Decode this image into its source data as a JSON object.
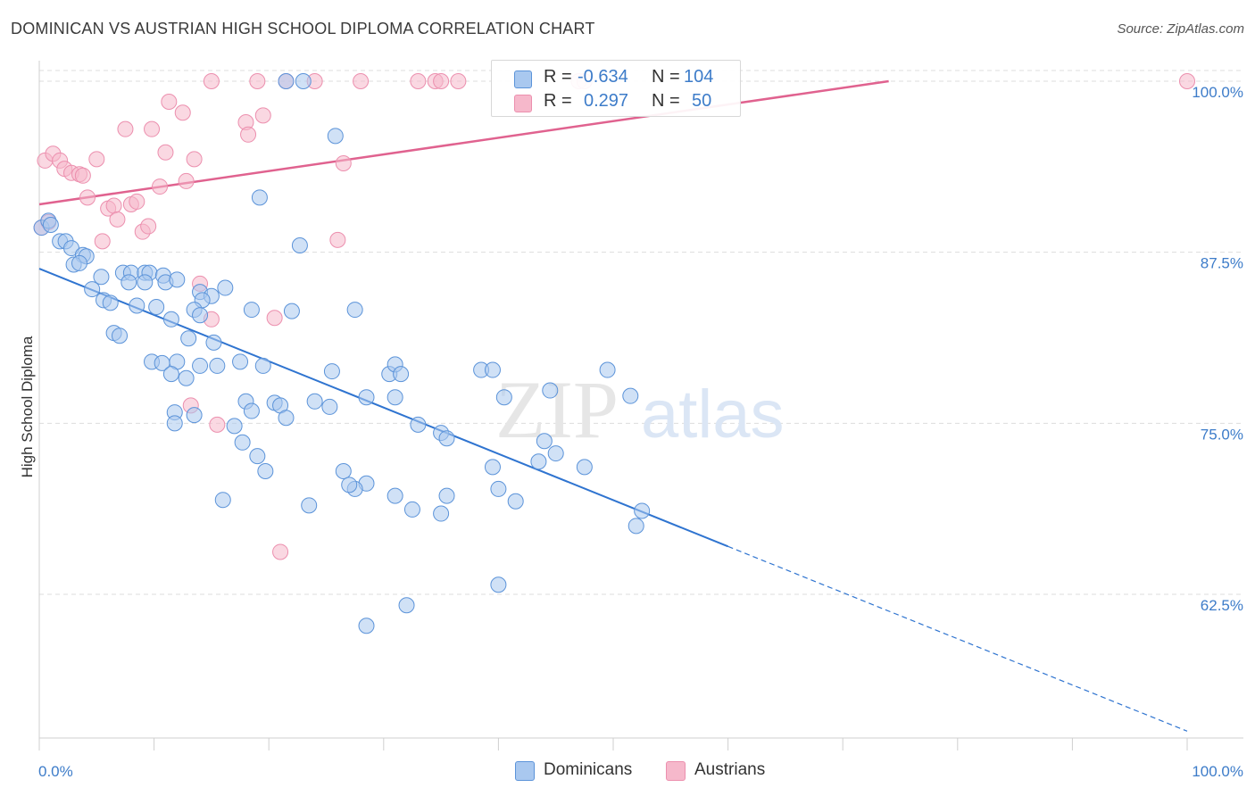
{
  "title": "DOMINICAN VS AUSTRIAN HIGH SCHOOL DIPLOMA CORRELATION CHART",
  "source": "Source: ZipAtlas.com",
  "watermark": {
    "zip": "ZIP",
    "atlas": "atlas"
  },
  "legend": {
    "rows": [
      {
        "r_label": "R =",
        "r_value": "-0.634",
        "n_label": "N =",
        "n_value": "104",
        "color": "#a9c8ef"
      },
      {
        "r_label": "R =",
        "r_value": "0.297",
        "n_label": "N =",
        "n_value": "50",
        "color": "#f6b8cb"
      }
    ]
  },
  "bottom_legend": [
    {
      "label": "Dominicans",
      "color": "#a9c8ef"
    },
    {
      "label": "Austrians",
      "color": "#f6b8cb"
    }
  ],
  "colors": {
    "blue_fill": "#a9c8ef",
    "blue_stroke": "#5b93d9",
    "blue_line": "#2f74d0",
    "pink_fill": "#f6b8cb",
    "pink_stroke": "#ec8fae",
    "pink_line": "#e0628f",
    "tick_text": "#3d7cc9",
    "grid": "#dddddd"
  },
  "chart_data": {
    "type": "scatter",
    "title": "DOMINICAN VS AUSTRIAN HIGH SCHOOL DIPLOMA CORRELATION CHART",
    "ylabel": "High School Diploma",
    "xlabel": "",
    "x_tick_labels": [
      "0.0%",
      "100.0%"
    ],
    "y_tick_labels": [
      "62.5%",
      "75.0%",
      "87.5%",
      "100.0%"
    ],
    "y_ticks": [
      62.5,
      75.0,
      87.5,
      100.0
    ],
    "xlim": [
      0,
      100
    ],
    "ylim": [
      52.0,
      101.5
    ],
    "grid": true,
    "legend_position": "top-center",
    "series": [
      {
        "name": "Dominicans",
        "r": -0.634,
        "n": 104,
        "trend": {
          "x0": 0,
          "y0": 86.3,
          "x1": 60,
          "y1": 66.0,
          "dash_to_x": 100,
          "dash_to_y": 52.5
        },
        "points": [
          [
            0.2,
            89.3
          ],
          [
            0.8,
            89.8
          ],
          [
            1.0,
            89.5
          ],
          [
            1.8,
            88.3
          ],
          [
            2.3,
            88.3
          ],
          [
            2.8,
            87.8
          ],
          [
            3.8,
            87.3
          ],
          [
            4.1,
            87.2
          ],
          [
            3.0,
            86.6
          ],
          [
            3.5,
            86.7
          ],
          [
            7.3,
            86.0
          ],
          [
            8.0,
            86.0
          ],
          [
            9.2,
            86.0
          ],
          [
            9.6,
            86.0
          ],
          [
            10.8,
            85.8
          ],
          [
            5.4,
            85.7
          ],
          [
            11.0,
            85.3
          ],
          [
            12.0,
            85.5
          ],
          [
            9.2,
            85.3
          ],
          [
            7.8,
            85.3
          ],
          [
            4.6,
            84.8
          ],
          [
            14.0,
            84.6
          ],
          [
            16.2,
            84.9
          ],
          [
            15.0,
            84.3
          ],
          [
            5.6,
            84.0
          ],
          [
            14.2,
            84.0
          ],
          [
            6.2,
            83.8
          ],
          [
            8.5,
            83.6
          ],
          [
            10.2,
            83.5
          ],
          [
            18.5,
            83.3
          ],
          [
            13.5,
            83.3
          ],
          [
            14.0,
            82.9
          ],
          [
            11.5,
            82.6
          ],
          [
            22.0,
            83.2
          ],
          [
            27.5,
            83.3
          ],
          [
            6.5,
            81.6
          ],
          [
            7.0,
            81.4
          ],
          [
            13.0,
            81.2
          ],
          [
            15.2,
            80.9
          ],
          [
            9.8,
            79.5
          ],
          [
            10.7,
            79.4
          ],
          [
            12.0,
            79.5
          ],
          [
            14.0,
            79.2
          ],
          [
            17.5,
            79.5
          ],
          [
            19.5,
            79.2
          ],
          [
            11.5,
            78.6
          ],
          [
            15.5,
            79.2
          ],
          [
            12.8,
            78.3
          ],
          [
            25.5,
            78.8
          ],
          [
            30.5,
            78.6
          ],
          [
            31.0,
            79.3
          ],
          [
            31.5,
            78.6
          ],
          [
            38.5,
            78.9
          ],
          [
            39.5,
            78.9
          ],
          [
            49.5,
            78.9
          ],
          [
            28.5,
            76.9
          ],
          [
            31.0,
            76.9
          ],
          [
            40.5,
            76.9
          ],
          [
            44.5,
            77.4
          ],
          [
            51.5,
            77.0
          ],
          [
            18.0,
            76.6
          ],
          [
            20.5,
            76.5
          ],
          [
            21.0,
            76.3
          ],
          [
            24.0,
            76.6
          ],
          [
            18.5,
            75.9
          ],
          [
            21.5,
            75.4
          ],
          [
            25.3,
            76.2
          ],
          [
            11.8,
            75.8
          ],
          [
            13.5,
            75.6
          ],
          [
            11.8,
            75.0
          ],
          [
            17.0,
            74.8
          ],
          [
            33.0,
            74.9
          ],
          [
            35.0,
            74.3
          ],
          [
            44.0,
            73.7
          ],
          [
            45.0,
            72.8
          ],
          [
            43.5,
            72.2
          ],
          [
            17.7,
            73.6
          ],
          [
            19.0,
            72.6
          ],
          [
            35.5,
            73.9
          ],
          [
            39.5,
            71.8
          ],
          [
            47.5,
            71.8
          ],
          [
            19.7,
            71.5
          ],
          [
            26.5,
            71.5
          ],
          [
            28.5,
            70.6
          ],
          [
            27.5,
            70.2
          ],
          [
            31.0,
            69.7
          ],
          [
            35.5,
            69.7
          ],
          [
            41.5,
            69.3
          ],
          [
            32.5,
            68.7
          ],
          [
            35.0,
            68.4
          ],
          [
            52.5,
            68.6
          ],
          [
            16.0,
            69.4
          ],
          [
            23.5,
            69.0
          ],
          [
            40.0,
            70.2
          ],
          [
            52.0,
            67.5
          ],
          [
            40.0,
            63.2
          ],
          [
            32.0,
            61.7
          ],
          [
            28.5,
            60.2
          ],
          [
            21.5,
            100.0
          ],
          [
            23.0,
            100.0
          ],
          [
            25.8,
            96.0
          ],
          [
            19.2,
            91.5
          ],
          [
            22.7,
            88.0
          ],
          [
            27.0,
            70.5
          ]
        ]
      },
      {
        "name": "Austrians",
        "r": 0.297,
        "n": 50,
        "trend": {
          "x0": 0,
          "y0": 91.0,
          "x1": 74,
          "y1": 100.0
        },
        "points": [
          [
            0.2,
            89.3
          ],
          [
            0.5,
            94.2
          ],
          [
            0.8,
            89.7
          ],
          [
            1.2,
            94.7
          ],
          [
            1.8,
            94.2
          ],
          [
            2.2,
            93.6
          ],
          [
            2.8,
            93.3
          ],
          [
            3.5,
            93.2
          ],
          [
            3.8,
            93.1
          ],
          [
            4.2,
            91.5
          ],
          [
            5.0,
            94.3
          ],
          [
            5.5,
            88.3
          ],
          [
            6.0,
            90.7
          ],
          [
            6.5,
            90.9
          ],
          [
            6.8,
            89.9
          ],
          [
            7.5,
            96.5
          ],
          [
            8.0,
            91.0
          ],
          [
            8.5,
            91.2
          ],
          [
            9.0,
            89.0
          ],
          [
            9.5,
            89.4
          ],
          [
            9.8,
            96.5
          ],
          [
            10.5,
            92.3
          ],
          [
            11.0,
            94.8
          ],
          [
            11.3,
            98.5
          ],
          [
            12.5,
            97.7
          ],
          [
            12.8,
            92.7
          ],
          [
            13.5,
            94.3
          ],
          [
            13.2,
            76.3
          ],
          [
            14.0,
            85.2
          ],
          [
            15.0,
            82.6
          ],
          [
            15.5,
            74.9
          ],
          [
            18.0,
            97.0
          ],
          [
            18.2,
            96.1
          ],
          [
            19.5,
            97.5
          ],
          [
            20.5,
            82.7
          ],
          [
            21.0,
            65.6
          ],
          [
            21.5,
            100.0
          ],
          [
            26.5,
            94.0
          ],
          [
            26.0,
            88.4
          ],
          [
            15.0,
            100.0
          ],
          [
            19.0,
            100.0
          ],
          [
            24.0,
            100.0
          ],
          [
            28.0,
            100.0
          ],
          [
            33.0,
            100.0
          ],
          [
            34.5,
            100.0
          ],
          [
            35.0,
            100.0
          ],
          [
            36.5,
            100.0
          ],
          [
            47.0,
            100.0
          ],
          [
            47.5,
            100.0
          ],
          [
            100.0,
            100.0
          ]
        ]
      }
    ]
  }
}
